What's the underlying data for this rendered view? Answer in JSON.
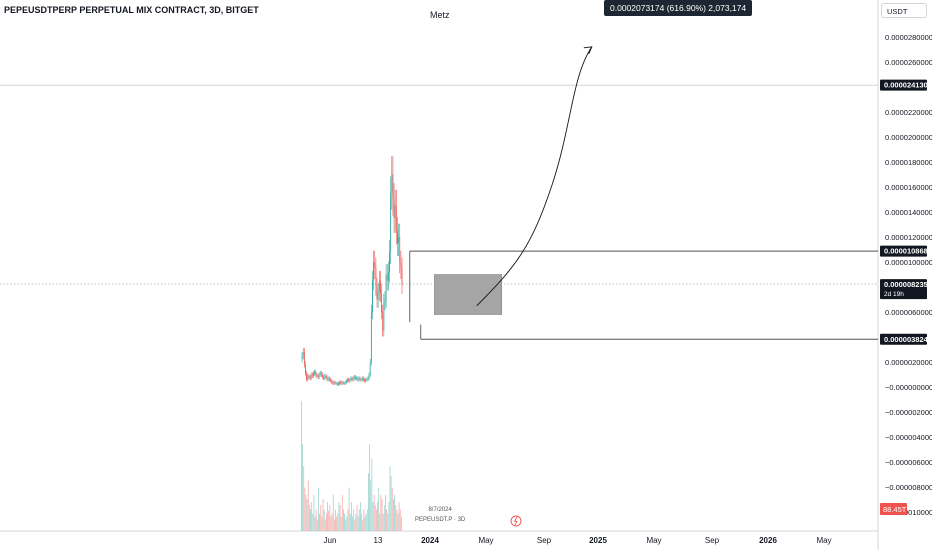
{
  "header": {
    "symbol_title": "PEPEUSDTPERP PERPETUAL MIX CONTRACT, 3D, BITGET",
    "author": "Metz",
    "measure_tooltip": "0.0002073174 (616.90%) 2,073,174",
    "currency": "USDT"
  },
  "colors": {
    "up": "#26a69a",
    "down": "#ef5350",
    "badge": "#131722",
    "volume_badge": "#ef5350",
    "zone": "#a5a5a5"
  },
  "price_axis": {
    "ticks": [
      "0.0000280000",
      "0.0000260000",
      "0.0000220000",
      "0.0000200000",
      "0.0000180000",
      "0.0000160000",
      "0.0000140000",
      "0.0000120000",
      "0.0000100000",
      "0.0000060000",
      "0.0000020000",
      "−0.0000000000",
      "−0.0000020000",
      "−0.0000040000",
      "−0.0000060000",
      "−0.0000080000",
      "−0.0000100000"
    ],
    "tick_values": [
      2.8e-05,
      2.6e-05,
      2.2e-05,
      2e-05,
      1.8e-05,
      1.6e-05,
      1.4e-05,
      1.2e-05,
      1e-05,
      6e-06,
      2e-06,
      0,
      -2e-06,
      -4e-06,
      -6e-06,
      -8e-06,
      -1e-05
    ],
    "badges": [
      {
        "label": "0.0000241309",
        "value": 2.41309e-05
      },
      {
        "label": "0.0000108681",
        "value": 1.08681e-05
      },
      {
        "label": "0.0000082350",
        "sub": "2d 19h",
        "value": 8.235e-06
      },
      {
        "label": "0.0000038244",
        "value": 3.8244e-06
      }
    ],
    "volume_badge": "88.45T"
  },
  "time_axis": {
    "labels": [
      "Jun",
      "13",
      "2024",
      "May",
      "Sep",
      "2025",
      "May",
      "Sep",
      "2026",
      "May"
    ],
    "bold": [
      "2024",
      "2025",
      "2026"
    ]
  },
  "last_bar_info": {
    "date": "8/7/2024",
    "symbol": "PEPEUSDT.P · 3D"
  },
  "chart_data": {
    "type": "candlestick",
    "title": "PEPEUSDTPERP PERPETUAL MIX CONTRACT, 3D, BITGET",
    "y_range": [
      -1.15e-05,
      2.95e-05
    ],
    "levels": [
      2.41309e-05,
      1.08681e-05,
      8.235e-06,
      3.8244e-06
    ],
    "zone": {
      "from": "2024-04-20",
      "to": "2024-10-15",
      "top": 9e-06,
      "bottom": 5.8e-06
    },
    "projection": {
      "start": "2024-08-10",
      "start_value": 6.5e-06,
      "end": "2025-06-10",
      "end_value": 2.72e-05
    },
    "x_start": "2023-05-05",
    "interval_days": 3,
    "price_series": [
      2.5e-06,
      2.8e-06,
      1.8e-06,
      1.1e-06,
      6e-07,
      9e-07,
      8e-07,
      7e-07,
      1e-06,
      9e-07,
      1.1e-06,
      1.2e-06,
      1e-06,
      9e-07,
      8e-07,
      1e-06,
      1.1e-06,
      1e-06,
      8e-07,
      7e-07,
      9e-07,
      8e-07,
      6e-07,
      7e-07,
      6e-07,
      5e-07,
      4e-07,
      3e-07,
      4e-07,
      3e-07,
      3e-07,
      2e-07,
      3e-07,
      4e-07,
      3e-07,
      4e-07,
      3e-07,
      3e-07,
      4e-07,
      5e-07,
      6e-07,
      5e-07,
      6e-07,
      7e-07,
      6e-07,
      7e-07,
      8e-07,
      7e-07,
      7e-07,
      6e-07,
      7e-07,
      6e-07,
      6e-07,
      7e-07,
      6e-07,
      5e-07,
      6e-07,
      6e-07,
      7e-07,
      1e-06,
      2e-06,
      6e-06,
      8.5e-06,
      1e-05,
      9.5e-06,
      8e-06,
      7e-06,
      7.6e-06,
      8.5e-06,
      7.5e-06,
      6e-06,
      4.5e-06,
      6.8e-06,
      7e-06,
      9e-06,
      8.5e-06,
      9.2e-06,
      1.08e-05,
      1.55e-05,
      1.7e-05,
      1.5e-05,
      1.35e-05,
      1.45e-05,
      1.25e-05,
      1.15e-05,
      1.2e-05,
      1e-05,
      9.5e-06,
      8.2e-06
    ],
    "volume_series": [
      90,
      60,
      45,
      30,
      25,
      22,
      35,
      18,
      15,
      20,
      12,
      25,
      10,
      15,
      8,
      30,
      12,
      18,
      10,
      22,
      15,
      8,
      12,
      20,
      14,
      18,
      10,
      12,
      25,
      8,
      15,
      10,
      12,
      20,
      18,
      10,
      25,
      15,
      12,
      8,
      10,
      15,
      30,
      12,
      20,
      10,
      15,
      8,
      12,
      18,
      10,
      15,
      20,
      12,
      8,
      15,
      10,
      12,
      15,
      40,
      60,
      35,
      50,
      20,
      25,
      18,
      15,
      20,
      30,
      12,
      25,
      22,
      12,
      18,
      25,
      15,
      12,
      20,
      45,
      38,
      30,
      22,
      25,
      18,
      15,
      12,
      20,
      15,
      10
    ]
  }
}
